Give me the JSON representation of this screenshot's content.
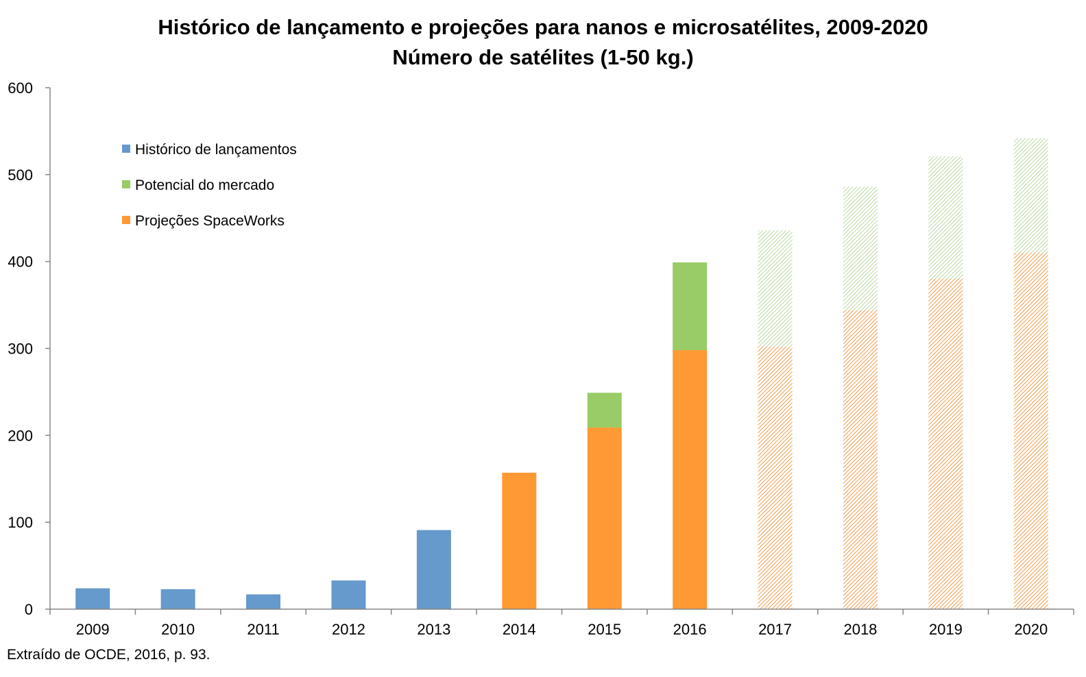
{
  "chart_data": {
    "type": "bar",
    "stacked": true,
    "title": "Histórico de lançamento e projeções para nanos e microsatélites, 2009-2020",
    "subtitle": "Número de satélites (1-50 kg.)",
    "categories": [
      "2009",
      "2010",
      "2011",
      "2012",
      "2013",
      "2014",
      "2015",
      "2016",
      "2017",
      "2018",
      "2019",
      "2020"
    ],
    "ylim": [
      0,
      600
    ],
    "yticks": [
      0,
      100,
      200,
      300,
      400,
      500,
      600
    ],
    "legend_position": "top-left",
    "series": [
      {
        "name": "Histórico de lançamentos",
        "color": "#6699CC",
        "values": [
          24,
          23,
          17,
          33,
          91,
          0,
          0,
          0,
          0,
          0,
          0,
          0
        ]
      },
      {
        "name": "Potencial do mercado",
        "color": "#99CC66",
        "values": [
          0,
          0,
          0,
          0,
          0,
          0,
          40,
          101,
          134,
          142,
          141,
          132
        ]
      },
      {
        "name": "Projeções SpaceWorks",
        "color": "#FF9933",
        "values": [
          0,
          0,
          0,
          0,
          0,
          157,
          209,
          298,
          302,
          344,
          380,
          410
        ]
      }
    ],
    "projected_categories": [
      "2017",
      "2018",
      "2019",
      "2020"
    ]
  },
  "source_note": "Extraído de OCDE, 2016, p. 93."
}
